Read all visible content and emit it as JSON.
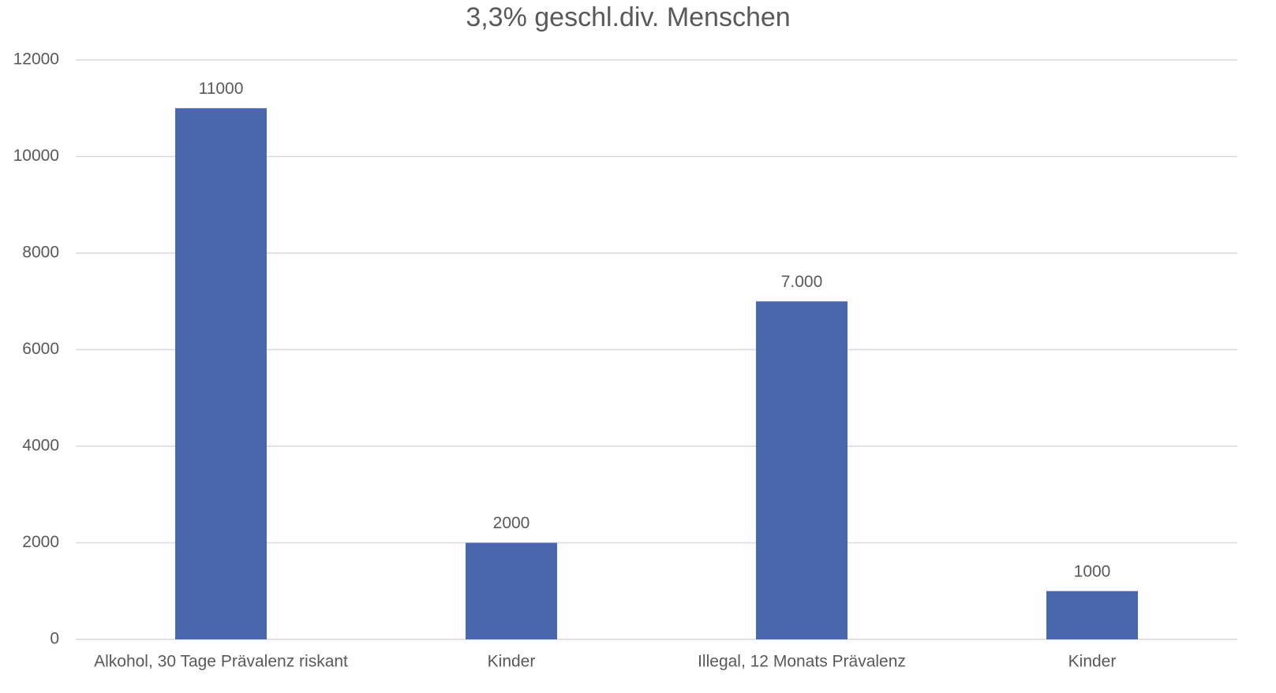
{
  "chart_data": {
    "type": "bar",
    "title": "3,3% geschl.div. Menschen",
    "categories": [
      "Alkohol, 30 Tage Prävalenz riskant",
      "Kinder",
      "Illegal, 12 Monats Prävalenz",
      "Kinder"
    ],
    "values": [
      11000,
      2000,
      7000,
      1000
    ],
    "value_labels": [
      "11000",
      "2000",
      "7.000",
      "1000"
    ],
    "color": "#4a66ac",
    "ylim": [
      0,
      12000
    ],
    "yticks": [
      0,
      2000,
      4000,
      6000,
      8000,
      10000,
      12000
    ],
    "grid": true
  }
}
